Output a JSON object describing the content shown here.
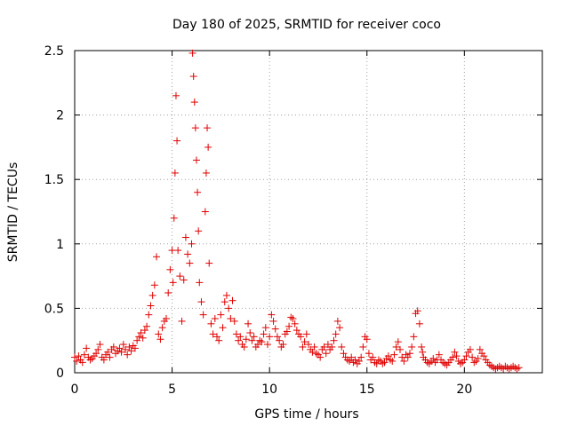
{
  "chart_data": {
    "type": "scatter",
    "title": "Day 180 of 2025, SRMTID for receiver coco",
    "xlabel": "GPS time / hours",
    "ylabel": "SRMTID / TECUs",
    "xlim": [
      0,
      24
    ],
    "ylim": [
      0,
      2.5
    ],
    "xticks": [
      0,
      5,
      10,
      15,
      20
    ],
    "yticks": [
      0,
      0.5,
      1,
      1.5,
      2,
      2.5
    ],
    "xtick_labels": [
      "0",
      "5",
      "10",
      "15",
      "20"
    ],
    "ytick_labels": [
      "0",
      "0.5",
      "1",
      "1.5",
      "2",
      "2.5"
    ],
    "grid": true,
    "marker": "+",
    "series": [
      {
        "name": "SRMTID",
        "color": "#e00000",
        "x": [
          0.0,
          0.1,
          0.2,
          0.3,
          0.4,
          0.5,
          0.6,
          0.7,
          0.8,
          0.9,
          1.0,
          1.1,
          1.2,
          1.3,
          1.4,
          1.5,
          1.6,
          1.7,
          1.8,
          1.9,
          2.0,
          2.1,
          2.2,
          2.3,
          2.4,
          2.5,
          2.6,
          2.7,
          2.8,
          2.9,
          3.0,
          3.1,
          3.2,
          3.3,
          3.4,
          3.5,
          3.6,
          3.7,
          3.8,
          3.9,
          4.0,
          4.1,
          4.2,
          4.3,
          4.4,
          4.5,
          4.6,
          4.7,
          4.8,
          4.9,
          5.0,
          5.05,
          5.1,
          5.15,
          5.2,
          5.25,
          5.3,
          5.4,
          5.5,
          5.6,
          5.7,
          5.8,
          5.9,
          6.0,
          6.05,
          6.1,
          6.15,
          6.2,
          6.25,
          6.3,
          6.35,
          6.4,
          6.5,
          6.6,
          6.7,
          6.75,
          6.8,
          6.85,
          6.9,
          7.0,
          7.1,
          7.2,
          7.3,
          7.4,
          7.5,
          7.6,
          7.7,
          7.8,
          7.9,
          8.0,
          8.1,
          8.2,
          8.3,
          8.4,
          8.5,
          8.6,
          8.7,
          8.8,
          8.9,
          9.0,
          9.1,
          9.2,
          9.3,
          9.4,
          9.5,
          9.6,
          9.7,
          9.8,
          9.9,
          10.0,
          10.1,
          10.2,
          10.3,
          10.4,
          10.5,
          10.6,
          10.7,
          10.8,
          10.9,
          11.0,
          11.1,
          11.2,
          11.3,
          11.4,
          11.5,
          11.6,
          11.7,
          11.8,
          11.9,
          12.0,
          12.1,
          12.2,
          12.3,
          12.4,
          12.5,
          12.6,
          12.7,
          12.8,
          12.9,
          13.0,
          13.1,
          13.2,
          13.3,
          13.4,
          13.5,
          13.6,
          13.7,
          13.8,
          13.9,
          14.0,
          14.1,
          14.2,
          14.3,
          14.4,
          14.5,
          14.6,
          14.7,
          14.8,
          14.9,
          15.0,
          15.1,
          15.2,
          15.3,
          15.4,
          15.5,
          15.6,
          15.7,
          15.8,
          15.9,
          16.0,
          16.1,
          16.2,
          16.3,
          16.4,
          16.5,
          16.6,
          16.7,
          16.8,
          16.9,
          17.0,
          17.1,
          17.2,
          17.3,
          17.4,
          17.5,
          17.6,
          17.7,
          17.8,
          17.85,
          17.9,
          18.0,
          18.1,
          18.2,
          18.3,
          18.4,
          18.5,
          18.6,
          18.7,
          18.8,
          18.9,
          19.0,
          19.1,
          19.2,
          19.3,
          19.4,
          19.5,
          19.6,
          19.7,
          19.8,
          19.9,
          20.0,
          20.1,
          20.2,
          20.3,
          20.4,
          20.5,
          20.6,
          20.7,
          20.8,
          20.9,
          21.0,
          21.1,
          21.2,
          21.3,
          21.4,
          21.5,
          21.6,
          21.7,
          21.8,
          21.9,
          22.0,
          22.1,
          22.2,
          22.3,
          22.4,
          22.5,
          22.6,
          22.7,
          22.8
        ],
        "y": [
          0.12,
          0.09,
          0.13,
          0.1,
          0.08,
          0.14,
          0.19,
          0.12,
          0.1,
          0.11,
          0.13,
          0.15,
          0.18,
          0.22,
          0.12,
          0.1,
          0.14,
          0.16,
          0.12,
          0.18,
          0.2,
          0.15,
          0.17,
          0.19,
          0.16,
          0.22,
          0.18,
          0.14,
          0.2,
          0.17,
          0.21,
          0.19,
          0.25,
          0.28,
          0.31,
          0.27,
          0.33,
          0.36,
          0.45,
          0.52,
          0.6,
          0.68,
          0.9,
          0.3,
          0.26,
          0.35,
          0.4,
          0.42,
          0.62,
          0.8,
          0.95,
          0.7,
          1.2,
          1.55,
          2.15,
          1.8,
          0.95,
          0.75,
          0.4,
          0.72,
          1.05,
          0.92,
          0.85,
          1.0,
          2.48,
          2.3,
          2.1,
          1.9,
          1.65,
          1.4,
          1.1,
          0.7,
          0.55,
          0.45,
          1.25,
          1.55,
          1.9,
          1.75,
          0.85,
          0.38,
          0.3,
          0.42,
          0.28,
          0.25,
          0.45,
          0.35,
          0.55,
          0.6,
          0.5,
          0.42,
          0.56,
          0.4,
          0.3,
          0.25,
          0.28,
          0.22,
          0.2,
          0.26,
          0.38,
          0.31,
          0.25,
          0.28,
          0.2,
          0.22,
          0.25,
          0.24,
          0.3,
          0.35,
          0.22,
          0.28,
          0.45,
          0.4,
          0.34,
          0.28,
          0.25,
          0.2,
          0.22,
          0.3,
          0.32,
          0.36,
          0.43,
          0.42,
          0.38,
          0.33,
          0.3,
          0.28,
          0.2,
          0.24,
          0.3,
          0.22,
          0.18,
          0.16,
          0.2,
          0.15,
          0.14,
          0.12,
          0.18,
          0.2,
          0.15,
          0.22,
          0.18,
          0.2,
          0.25,
          0.3,
          0.4,
          0.35,
          0.2,
          0.15,
          0.12,
          0.1,
          0.09,
          0.12,
          0.08,
          0.1,
          0.07,
          0.09,
          0.12,
          0.2,
          0.28,
          0.26,
          0.15,
          0.1,
          0.12,
          0.08,
          0.07,
          0.1,
          0.09,
          0.07,
          0.08,
          0.11,
          0.13,
          0.1,
          0.09,
          0.14,
          0.2,
          0.24,
          0.18,
          0.12,
          0.09,
          0.14,
          0.12,
          0.15,
          0.2,
          0.28,
          0.46,
          0.48,
          0.38,
          0.2,
          0.16,
          0.12,
          0.1,
          0.08,
          0.07,
          0.09,
          0.11,
          0.08,
          0.1,
          0.14,
          0.1,
          0.08,
          0.07,
          0.06,
          0.08,
          0.1,
          0.12,
          0.16,
          0.13,
          0.09,
          0.07,
          0.08,
          0.1,
          0.13,
          0.16,
          0.18,
          0.12,
          0.08,
          0.09,
          0.11,
          0.18,
          0.15,
          0.13,
          0.1,
          0.08,
          0.06,
          0.05,
          0.04,
          0.03,
          0.04,
          0.05,
          0.04,
          0.03,
          0.05,
          0.04,
          0.03,
          0.04,
          0.05,
          0.04,
          0.03,
          0.04
        ]
      }
    ]
  }
}
